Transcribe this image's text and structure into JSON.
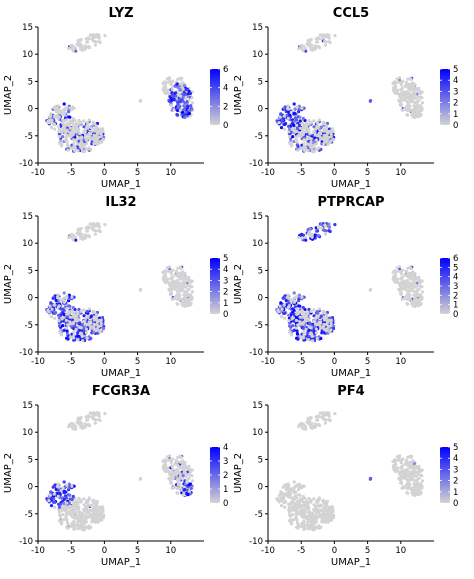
{
  "chart_data": [
    {
      "type": "scatter",
      "title": "LYZ",
      "xlabel": "UMAP_1",
      "ylabel": "UMAP_2",
      "xlim": [
        -10,
        15
      ],
      "ylim": [
        -10,
        15
      ],
      "xticks": [
        "-10",
        "-5",
        "0",
        "5",
        "10"
      ],
      "yticks": [
        "-10",
        "-5",
        "0",
        "5",
        "10",
        "15"
      ],
      "color_scale": {
        "ticks": [
          "0",
          "2",
          "4",
          "6"
        ],
        "max": 6,
        "low": "#d3d3d3",
        "high": "#0000ff"
      },
      "expression": {
        "top": 0.05,
        "mid_right": 0.0,
        "right": 0.92,
        "dot": 0.3,
        "left_lobe": 0.35,
        "main": 0.35
      }
    },
    {
      "type": "scatter",
      "title": "CCL5",
      "xlabel": "UMAP_1",
      "ylabel": "UMAP_2",
      "xlim": [
        -10,
        15
      ],
      "ylim": [
        -10,
        15
      ],
      "xticks": [
        "-10",
        "-5",
        "0",
        "5",
        "10"
      ],
      "yticks": [
        "-10",
        "-5",
        "0",
        "5",
        "10",
        "15"
      ],
      "color_scale": {
        "ticks": [
          "0",
          "1",
          "2",
          "3",
          "4",
          "5"
        ],
        "max": 5,
        "low": "#d3d3d3",
        "high": "#0000ff"
      },
      "expression": {
        "top": 0.1,
        "mid_right": 0.12,
        "right": 0.05,
        "dot": 0.95,
        "left_lobe": 0.85,
        "main": 0.45
      }
    },
    {
      "type": "scatter",
      "title": "IL32",
      "xlabel": "UMAP_1",
      "ylabel": "UMAP_2",
      "xlim": [
        -10,
        15
      ],
      "ylim": [
        -10,
        15
      ],
      "xticks": [
        "-10",
        "-5",
        "0",
        "5",
        "10"
      ],
      "yticks": [
        "-10",
        "-5",
        "0",
        "5",
        "10",
        "15"
      ],
      "color_scale": {
        "ticks": [
          "0",
          "1",
          "2",
          "3",
          "4",
          "5"
        ],
        "max": 5,
        "low": "#d3d3d3",
        "high": "#0000ff"
      },
      "expression": {
        "top": 0.08,
        "mid_right": 0.1,
        "right": 0.08,
        "dot": 0.05,
        "left_lobe": 0.7,
        "main": 0.65
      }
    },
    {
      "type": "scatter",
      "title": "PTPRCAP",
      "xlabel": "UMAP_1",
      "ylabel": "UMAP_2",
      "xlim": [
        -10,
        15
      ],
      "ylim": [
        -10,
        15
      ],
      "xticks": [
        "-10",
        "-5",
        "0",
        "5",
        "10"
      ],
      "yticks": [
        "-10",
        "-5",
        "0",
        "5",
        "10",
        "15"
      ],
      "color_scale": {
        "ticks": [
          "0",
          "1",
          "2",
          "3",
          "4",
          "5",
          "6"
        ],
        "max": 6,
        "low": "#d3d3d3",
        "high": "#0000ff"
      },
      "expression": {
        "top": 0.75,
        "mid_right": 0.1,
        "right": 0.1,
        "dot": 0.05,
        "left_lobe": 0.7,
        "main": 0.65
      }
    },
    {
      "type": "scatter",
      "title": "FCGR3A",
      "xlabel": "UMAP_1",
      "ylabel": "UMAP_2",
      "xlim": [
        -10,
        15
      ],
      "ylim": [
        -10,
        15
      ],
      "xticks": [
        "-10",
        "-5",
        "0",
        "5",
        "10"
      ],
      "yticks": [
        "-10",
        "-5",
        "0",
        "5",
        "10",
        "15"
      ],
      "color_scale": {
        "ticks": [
          "0",
          "1",
          "2",
          "3",
          "4"
        ],
        "max": 4,
        "low": "#d3d3d3",
        "high": "#0000ff"
      },
      "expression": {
        "top": 0.0,
        "mid_right": 0.05,
        "right": 0.35,
        "right_tip": 0.95,
        "dot": 0.0,
        "left_lobe": 0.85,
        "main": 0.03
      }
    },
    {
      "type": "scatter",
      "title": "PF4",
      "xlabel": "UMAP_1",
      "ylabel": "UMAP_2",
      "xlim": [
        -10,
        15
      ],
      "ylim": [
        -10,
        15
      ],
      "xticks": [
        "-10",
        "-5",
        "0",
        "5",
        "10"
      ],
      "yticks": [
        "-10",
        "-5",
        "0",
        "5",
        "10",
        "15"
      ],
      "color_scale": {
        "ticks": [
          "0",
          "1",
          "2",
          "3",
          "4",
          "5"
        ],
        "max": 5,
        "low": "#d3d3d3",
        "high": "#0000ff"
      },
      "expression": {
        "top": 0.0,
        "mid_right": 0.0,
        "right": 0.02,
        "dot": 1.0,
        "left_lobe": 0.0,
        "main": 0.0
      }
    }
  ]
}
